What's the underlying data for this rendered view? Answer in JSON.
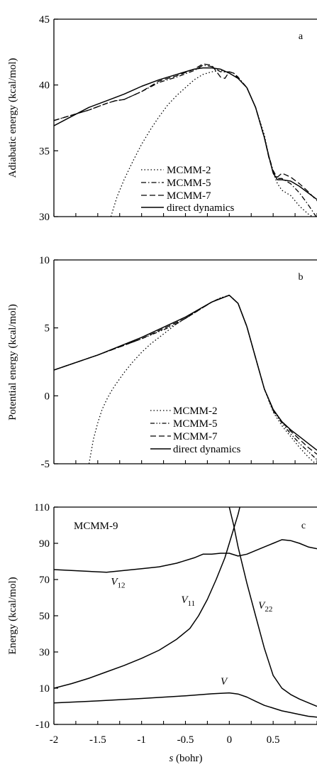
{
  "chart_data": [
    {
      "panel": "a",
      "type": "line",
      "ylabel": "Adiabatic energy (kcal/mol)",
      "xlim": [
        -2,
        1
      ],
      "ylim": [
        30,
        45
      ],
      "yticks": [
        30,
        35,
        40,
        45
      ],
      "legend_placement": "bottom-center",
      "series": [
        {
          "name": "MCMM-2",
          "style": "dotted",
          "x": [
            -1.35,
            -1.28,
            -1.2,
            -1.1,
            -1.0,
            -0.9,
            -0.8,
            -0.7,
            -0.6,
            -0.5,
            -0.4,
            -0.3,
            -0.2,
            -0.1,
            0.0,
            0.1,
            0.2,
            0.3,
            0.4,
            0.45,
            0.5,
            0.55,
            0.6,
            0.7,
            0.8,
            0.9,
            1.0
          ],
          "y": [
            30.0,
            31.5,
            32.8,
            34.2,
            35.5,
            36.6,
            37.6,
            38.5,
            39.2,
            39.8,
            40.4,
            40.8,
            41.0,
            41.1,
            40.9,
            40.5,
            39.8,
            38.3,
            36.2,
            34.6,
            33.3,
            32.5,
            32.0,
            31.6,
            30.8,
            30.2,
            29.8
          ]
        },
        {
          "name": "MCMM-5",
          "style": "dash-dot",
          "x": [
            -2.0,
            -1.8,
            -1.6,
            -1.4,
            -1.3,
            -1.2,
            -1.0,
            -0.8,
            -0.6,
            -0.4,
            -0.3,
            -0.2,
            -0.1,
            0.0,
            0.05,
            0.1,
            0.2,
            0.3,
            0.4,
            0.45,
            0.5,
            0.55,
            0.6,
            0.7,
            0.8,
            0.9,
            1.0
          ],
          "y": [
            37.3,
            37.7,
            38.1,
            38.6,
            38.8,
            38.9,
            39.5,
            40.2,
            40.6,
            41.1,
            41.5,
            41.4,
            41.0,
            41.0,
            40.9,
            40.6,
            39.8,
            38.3,
            36.0,
            34.6,
            33.5,
            32.9,
            32.9,
            32.5,
            31.8,
            30.9,
            29.9
          ]
        },
        {
          "name": "MCMM-7",
          "style": "dashed",
          "x": [
            -2.0,
            -1.8,
            -1.6,
            -1.4,
            -1.3,
            -1.2,
            -1.0,
            -0.8,
            -0.6,
            -0.4,
            -0.3,
            -0.2,
            -0.1,
            -0.05,
            0.0,
            0.05,
            0.1,
            0.2,
            0.3,
            0.4,
            0.45,
            0.5,
            0.55,
            0.6,
            0.7,
            0.8,
            0.9,
            1.0
          ],
          "y": [
            37.3,
            37.7,
            38.1,
            38.6,
            38.8,
            38.9,
            39.5,
            40.3,
            40.7,
            41.2,
            41.6,
            41.5,
            40.6,
            40.5,
            41.0,
            40.9,
            40.5,
            39.8,
            38.3,
            36.0,
            34.5,
            33.4,
            33.0,
            33.3,
            33.0,
            32.5,
            31.9,
            31.2
          ]
        },
        {
          "name": "direct dynamics",
          "style": "solid",
          "x": [
            -2.0,
            -1.8,
            -1.6,
            -1.4,
            -1.2,
            -1.0,
            -0.8,
            -0.6,
            -0.4,
            -0.3,
            -0.2,
            -0.1,
            0.0,
            0.1,
            0.2,
            0.3,
            0.4,
            0.45,
            0.5,
            0.55,
            0.6,
            0.7,
            0.8,
            0.9,
            1.0
          ],
          "y": [
            36.9,
            37.6,
            38.3,
            38.8,
            39.3,
            39.9,
            40.4,
            40.8,
            41.2,
            41.3,
            41.3,
            41.2,
            40.9,
            40.5,
            39.8,
            38.3,
            36.0,
            34.6,
            33.3,
            32.8,
            32.8,
            32.7,
            32.3,
            31.8,
            31.3
          ]
        }
      ]
    },
    {
      "panel": "b",
      "type": "line",
      "ylabel": "Potential energy (kcal/mol)",
      "xlim": [
        -2,
        1
      ],
      "ylim": [
        -5,
        10
      ],
      "yticks": [
        -5,
        0,
        5,
        10
      ],
      "legend_placement": "bottom-center",
      "series": [
        {
          "name": "MCMM-2",
          "style": "dotted",
          "x": [
            -1.6,
            -1.55,
            -1.5,
            -1.45,
            -1.4,
            -1.35,
            -1.3,
            -1.2,
            -1.1,
            -1.0,
            -0.9,
            -0.8,
            -0.7,
            -0.6,
            -0.5,
            -0.4,
            -0.3,
            -0.2,
            -0.1,
            0.0,
            0.1,
            0.2,
            0.3,
            0.4,
            0.5,
            0.6,
            0.7,
            0.8,
            0.9,
            1.0
          ],
          "y": [
            -5.0,
            -3.2,
            -2.0,
            -1.0,
            -0.3,
            0.3,
            0.8,
            1.7,
            2.5,
            3.2,
            3.8,
            4.3,
            4.8,
            5.3,
            5.7,
            6.1,
            6.5,
            6.9,
            7.2,
            7.4,
            6.8,
            5.1,
            2.8,
            0.5,
            -1.2,
            -2.2,
            -3.0,
            -3.8,
            -4.5,
            -5.1
          ]
        },
        {
          "name": "MCMM-5",
          "style": "dash-dot-dot",
          "x": [
            -2.0,
            -1.5,
            -1.0,
            -0.7,
            -0.6,
            -0.5,
            -0.4,
            -0.3,
            -0.2,
            -0.1,
            0.0,
            0.1,
            0.2,
            0.3,
            0.4,
            0.5,
            0.6,
            0.7,
            0.8,
            0.9,
            1.0
          ],
          "y": [
            1.9,
            3.0,
            4.2,
            5.0,
            5.3,
            5.7,
            6.1,
            6.5,
            6.9,
            7.2,
            7.4,
            6.8,
            5.1,
            2.8,
            0.5,
            -1.1,
            -2.0,
            -2.8,
            -3.5,
            -4.1,
            -4.7
          ]
        },
        {
          "name": "MCMM-7",
          "style": "dashed",
          "x": [
            -2.0,
            -1.5,
            -1.0,
            -0.5,
            -0.2,
            0.0,
            0.1,
            0.2,
            0.3,
            0.4,
            0.5,
            0.6,
            0.7,
            0.8,
            0.9,
            1.0
          ],
          "y": [
            1.9,
            3.0,
            4.2,
            5.7,
            6.9,
            7.4,
            6.8,
            5.1,
            2.8,
            0.5,
            -1.0,
            -1.9,
            -2.6,
            -3.2,
            -3.8,
            -4.3
          ]
        },
        {
          "name": "direct dynamics",
          "style": "solid",
          "x": [
            -2.0,
            -1.5,
            -1.0,
            -0.5,
            -0.2,
            0.0,
            0.1,
            0.2,
            0.3,
            0.4,
            0.5,
            0.6,
            0.7,
            0.8,
            0.9,
            1.0
          ],
          "y": [
            1.9,
            3.0,
            4.3,
            5.8,
            6.9,
            7.4,
            6.8,
            5.1,
            2.8,
            0.5,
            -1.0,
            -1.9,
            -2.5,
            -3.0,
            -3.5,
            -4.0
          ]
        }
      ]
    },
    {
      "panel": "c",
      "type": "line",
      "title": "MCMM-9",
      "xlabel": "s (bohr)",
      "ylabel": "Energy (kcal/mol)",
      "xlim": [
        -2,
        1
      ],
      "ylim": [
        -10,
        110
      ],
      "yticks": [
        -10,
        10,
        30,
        50,
        70,
        90,
        110
      ],
      "xticks": [
        -2,
        -1.5,
        -1,
        -0.5,
        0,
        0.5
      ],
      "xtick_labels": [
        "-2",
        "-1.5",
        "-1",
        "-0.5",
        "0",
        "0.5"
      ],
      "series": [
        {
          "name": "V12",
          "label_main": "V",
          "label_sub": "12",
          "style": "solid",
          "x": [
            -2.0,
            -1.8,
            -1.6,
            -1.4,
            -1.2,
            -1.0,
            -0.8,
            -0.6,
            -0.4,
            -0.3,
            -0.2,
            -0.1,
            0.0,
            0.1,
            0.2,
            0.3,
            0.4,
            0.5,
            0.6,
            0.7,
            0.8,
            0.9,
            1.0
          ],
          "y": [
            75.5,
            75.0,
            74.5,
            74.0,
            75.0,
            76.0,
            77.0,
            79.0,
            82.0,
            84.0,
            84.0,
            84.5,
            84.5,
            83.0,
            84.0,
            86.0,
            88.0,
            90.0,
            92.0,
            91.5,
            90.0,
            88.0,
            87.0
          ]
        },
        {
          "name": "V11",
          "label_main": "V",
          "label_sub": "11",
          "style": "solid",
          "x": [
            -2.0,
            -1.8,
            -1.6,
            -1.4,
            -1.2,
            -1.0,
            -0.8,
            -0.6,
            -0.45,
            -0.35,
            -0.25,
            -0.15,
            -0.05,
            0.0,
            0.05,
            0.1,
            0.12
          ],
          "y": [
            10.0,
            12.5,
            15.5,
            19.0,
            22.5,
            26.5,
            31.0,
            37.0,
            43.0,
            50.0,
            59.0,
            70.0,
            82.0,
            90.0,
            98.0,
            106.0,
            110.0
          ]
        },
        {
          "name": "V22",
          "label_main": "V",
          "label_sub": "22",
          "style": "solid",
          "x": [
            0.0,
            0.05,
            0.1,
            0.2,
            0.3,
            0.4,
            0.5,
            0.6,
            0.7,
            0.8,
            0.9,
            1.0
          ],
          "y": [
            110.0,
            100.0,
            88.0,
            68.0,
            50.0,
            32.0,
            17.0,
            10.0,
            6.5,
            4.0,
            2.0,
            0.0
          ]
        },
        {
          "name": "V",
          "label_main": "V",
          "label_sub": "",
          "style": "solid",
          "x": [
            -2.0,
            -1.5,
            -1.0,
            -0.5,
            -0.2,
            0.0,
            0.1,
            0.2,
            0.3,
            0.4,
            0.5,
            0.6,
            0.7,
            0.8,
            0.9,
            1.0
          ],
          "y": [
            1.9,
            3.0,
            4.3,
            5.8,
            6.9,
            7.4,
            6.8,
            5.1,
            2.8,
            0.5,
            -1.0,
            -2.5,
            -3.5,
            -4.5,
            -5.5,
            -6.0
          ]
        }
      ]
    }
  ],
  "legend_labels": [
    "MCMM-2",
    "MCMM-5",
    "MCMM-7",
    "direct dynamics"
  ]
}
